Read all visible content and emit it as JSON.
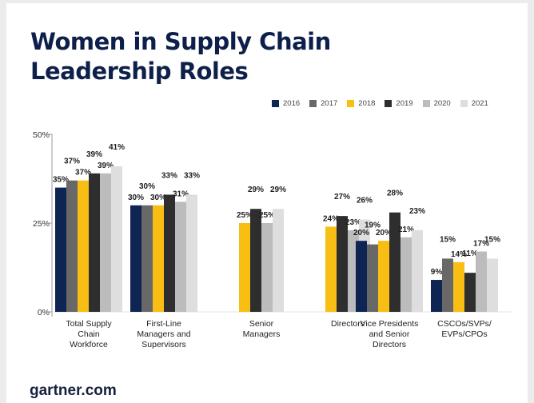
{
  "title_lines": [
    "Women in Supply Chain",
    "Leadership Roles"
  ],
  "footer": "gartner.com",
  "chart_data": {
    "type": "bar",
    "title": "Women in Supply Chain Leadership Roles",
    "ylim": [
      0,
      50
    ],
    "yticks": [
      "0%",
      "25%",
      "50%"
    ],
    "ytick_values": [
      0,
      25,
      50
    ],
    "legend_position": "top-right",
    "grid": false,
    "categories": [
      [
        "Total Supply",
        "Chain",
        "Workforce"
      ],
      [
        "First-Line",
        "Managers and",
        "Supervisors"
      ],
      [
        "Senior",
        "Managers"
      ],
      [
        "Directors"
      ],
      [
        "Vice Presidents",
        "and Senior",
        "Directors"
      ],
      [
        "CSCOs/SVPs/",
        "EVPs/CPOs"
      ]
    ],
    "series": [
      {
        "name": "2016",
        "color": "#0e2452",
        "values": [
          35,
          30,
          null,
          null,
          20,
          9
        ]
      },
      {
        "name": "2017",
        "color": "#686868",
        "values": [
          37,
          30,
          null,
          null,
          19,
          15
        ]
      },
      {
        "name": "2018",
        "color": "#f9be14",
        "values": [
          37,
          30,
          25,
          24,
          20,
          14
        ]
      },
      {
        "name": "2019",
        "color": "#2e2e2e",
        "values": [
          39,
          33,
          29,
          27,
          28,
          11
        ]
      },
      {
        "name": "2020",
        "color": "#bcbcbc",
        "values": [
          39,
          31,
          25,
          23,
          21,
          17
        ]
      },
      {
        "name": "2021",
        "color": "#dedede",
        "values": [
          41,
          33,
          29,
          26,
          23,
          15
        ]
      }
    ],
    "value_suffix": "%"
  }
}
